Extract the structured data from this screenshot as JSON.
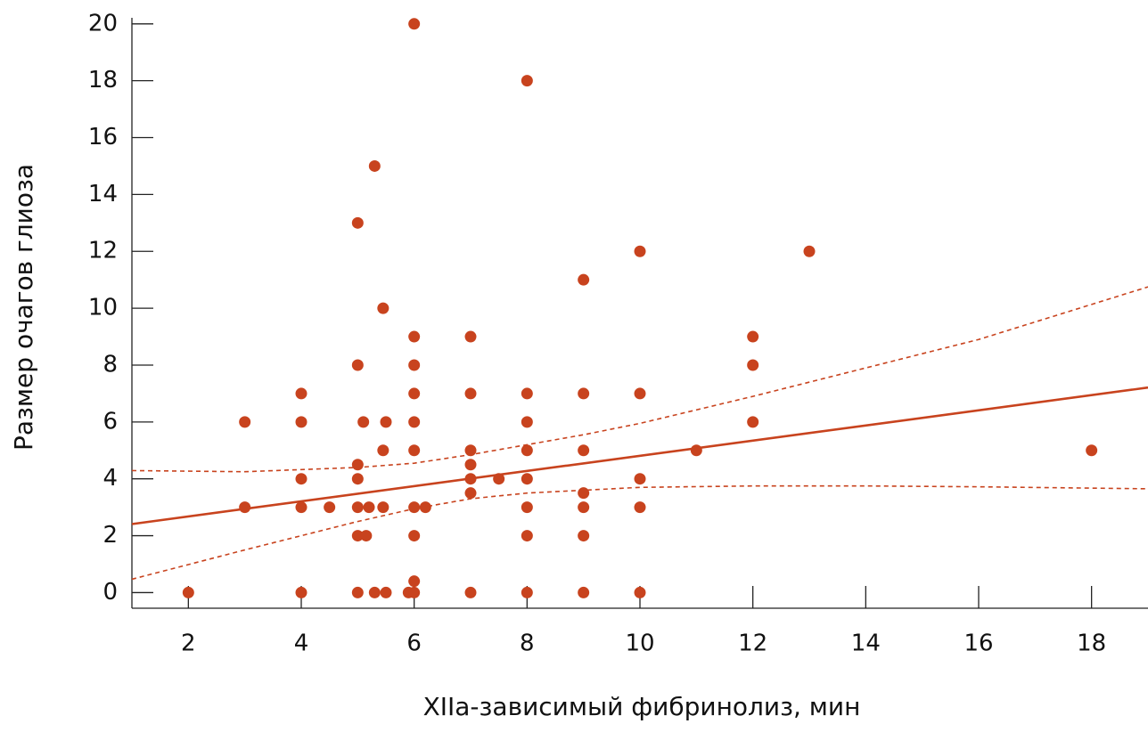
{
  "chart_data": {
    "type": "scatter",
    "x_label": "XIIa-зависимый фибринолиз, мин",
    "y_label": "Размер очагов глиоза",
    "xlim": [
      1,
      19
    ],
    "ylim": [
      -0.55,
      20.15
    ],
    "xticks": [
      2,
      4,
      6,
      8,
      10,
      12,
      14,
      16,
      18
    ],
    "yticks": [
      0,
      2,
      4,
      6,
      8,
      10,
      12,
      14,
      16,
      18,
      20
    ],
    "series": [
      {
        "color": "#c8431e",
        "x": [
          2,
          3,
          3,
          4,
          4,
          4,
          4,
          4,
          4.5,
          5,
          5,
          5,
          5,
          5,
          5,
          5,
          5.1,
          5.15,
          5.2,
          5.3,
          5.3,
          5.45,
          5.45,
          5.45,
          5.5,
          5.5,
          5.9,
          6,
          6,
          6,
          6,
          6,
          6,
          6,
          6,
          6,
          6,
          6.2,
          7,
          7,
          7,
          7,
          7,
          7,
          7,
          7.5,
          8,
          8,
          8,
          8,
          8,
          8,
          8,
          8,
          9,
          9,
          9,
          9,
          9,
          9,
          9,
          10,
          10,
          10,
          10,
          10,
          11,
          12,
          12,
          12,
          13,
          18
        ],
        "y": [
          0,
          6,
          3,
          7,
          6,
          4,
          3,
          0,
          3,
          13,
          8,
          4.5,
          4,
          3,
          2,
          0,
          6,
          2,
          3,
          15,
          0,
          10,
          5,
          3,
          6,
          0,
          0,
          20,
          9,
          8,
          7,
          6,
          5,
          3,
          2,
          0.4,
          0,
          3,
          9,
          7,
          5,
          4.5,
          4,
          3.5,
          0,
          4,
          18,
          7,
          6,
          5,
          4,
          3,
          2,
          0,
          11,
          7,
          5,
          3.5,
          3,
          2,
          0,
          12,
          7,
          4,
          3,
          0,
          5,
          9,
          8,
          6,
          12,
          5
        ]
      }
    ],
    "lines": [
      {
        "color": "#c8431e",
        "dashed": false,
        "x": [
          1,
          19
        ],
        "values": [
          2.41,
          7.21
        ]
      },
      {
        "color": "#c8431e",
        "dashed": true,
        "x": [
          1,
          3,
          5,
          6,
          7,
          8,
          9,
          10,
          12,
          14,
          16,
          19
        ],
        "values": [
          4.29,
          4.25,
          4.4,
          4.55,
          4.85,
          5.2,
          5.55,
          5.95,
          6.9,
          7.9,
          8.9,
          10.75
        ]
      },
      {
        "color": "#c8431e",
        "dashed": true,
        "x": [
          1,
          3,
          5,
          6,
          7,
          8,
          9,
          10,
          12,
          14,
          16,
          19
        ],
        "values": [
          0.47,
          1.5,
          2.5,
          2.95,
          3.3,
          3.5,
          3.6,
          3.7,
          3.75,
          3.75,
          3.72,
          3.65
        ]
      }
    ]
  }
}
